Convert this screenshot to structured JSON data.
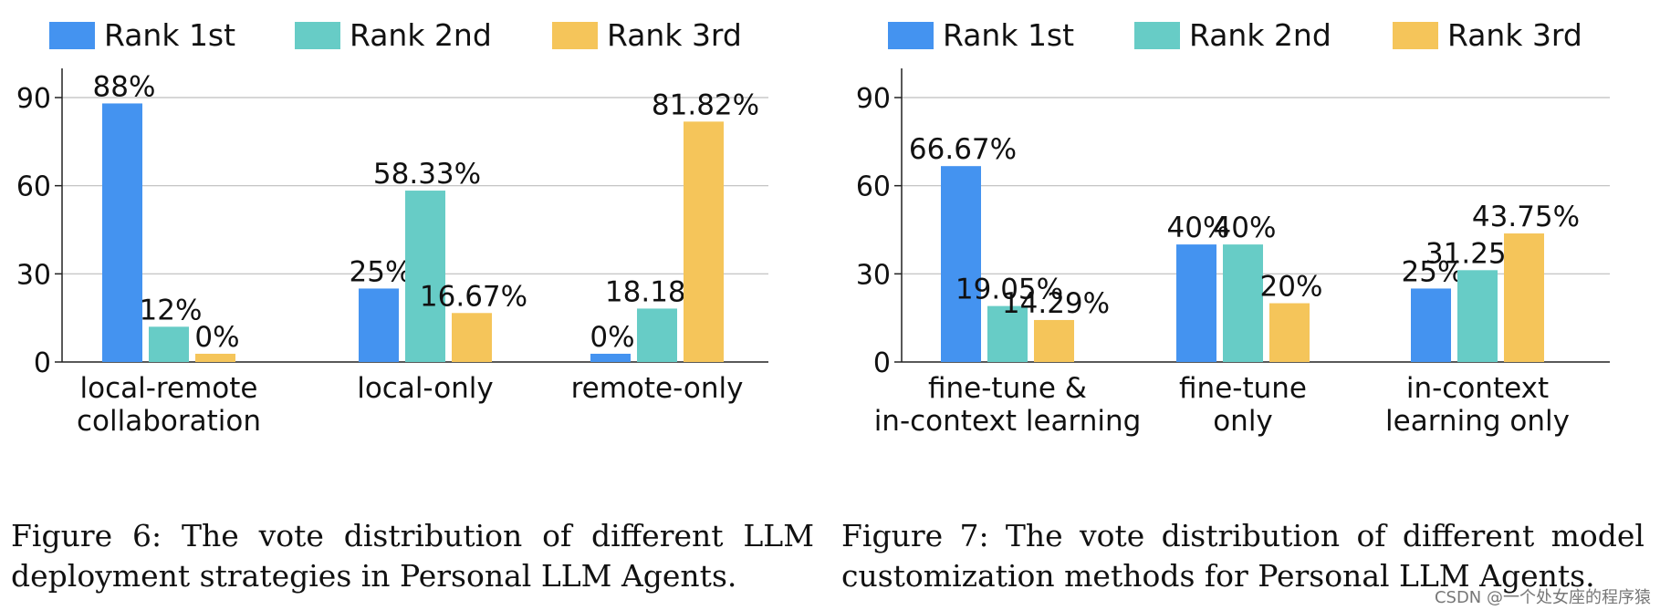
{
  "chart_data": [
    {
      "type": "bar",
      "categories": [
        [
          "local-remote",
          "collaboration"
        ],
        [
          "local-only"
        ],
        [
          "remote-only"
        ]
      ],
      "series": [
        {
          "name": "Rank 1st",
          "values": [
            88,
            25,
            0
          ],
          "labels": [
            "88%",
            "25%",
            "0%"
          ],
          "color": "#4493f0"
        },
        {
          "name": "Rank 2nd",
          "values": [
            12,
            58.33,
            18.18
          ],
          "labels": [
            "12%",
            "58.33%",
            "18.18%"
          ],
          "color": "#67ccc6"
        },
        {
          "name": "Rank 3rd",
          "values": [
            0,
            16.67,
            81.82
          ],
          "labels": [
            "0%",
            "16.67%",
            "81.82%"
          ],
          "color": "#f5c55a"
        }
      ],
      "yticks": [
        0,
        30,
        60,
        90
      ],
      "ylim": [
        0,
        100
      ],
      "grid": true,
      "legend": "top"
    },
    {
      "type": "bar",
      "categories": [
        [
          "fine-tune &",
          "in-context learning"
        ],
        [
          "fine-tune",
          "only"
        ],
        [
          "in-context",
          "learning only"
        ]
      ],
      "series": [
        {
          "name": "Rank 1st",
          "values": [
            66.67,
            40,
            25
          ],
          "labels": [
            "66.67%",
            "40%",
            "25%"
          ],
          "color": "#4493f0"
        },
        {
          "name": "Rank 2nd",
          "values": [
            19.05,
            40,
            31.25
          ],
          "labels": [
            "19.05%",
            "40%",
            "31.25%"
          ],
          "color": "#67ccc6"
        },
        {
          "name": "Rank 3rd",
          "values": [
            14.29,
            20,
            43.75
          ],
          "labels": [
            "14.29%",
            "20%",
            "43.75%"
          ],
          "color": "#f5c55a"
        }
      ],
      "yticks": [
        0,
        30,
        60,
        90
      ],
      "ylim": [
        0,
        100
      ],
      "grid": true,
      "legend": "top"
    }
  ],
  "captions": {
    "left": "Figure 6: The vote distribution of different LLM deployment strategies in Personal LLM Agents.",
    "right": "Figure 7: The vote distribution of different model customization methods for Personal LLM Agents."
  },
  "watermark": "CSDN @一个处女座的程序猿"
}
